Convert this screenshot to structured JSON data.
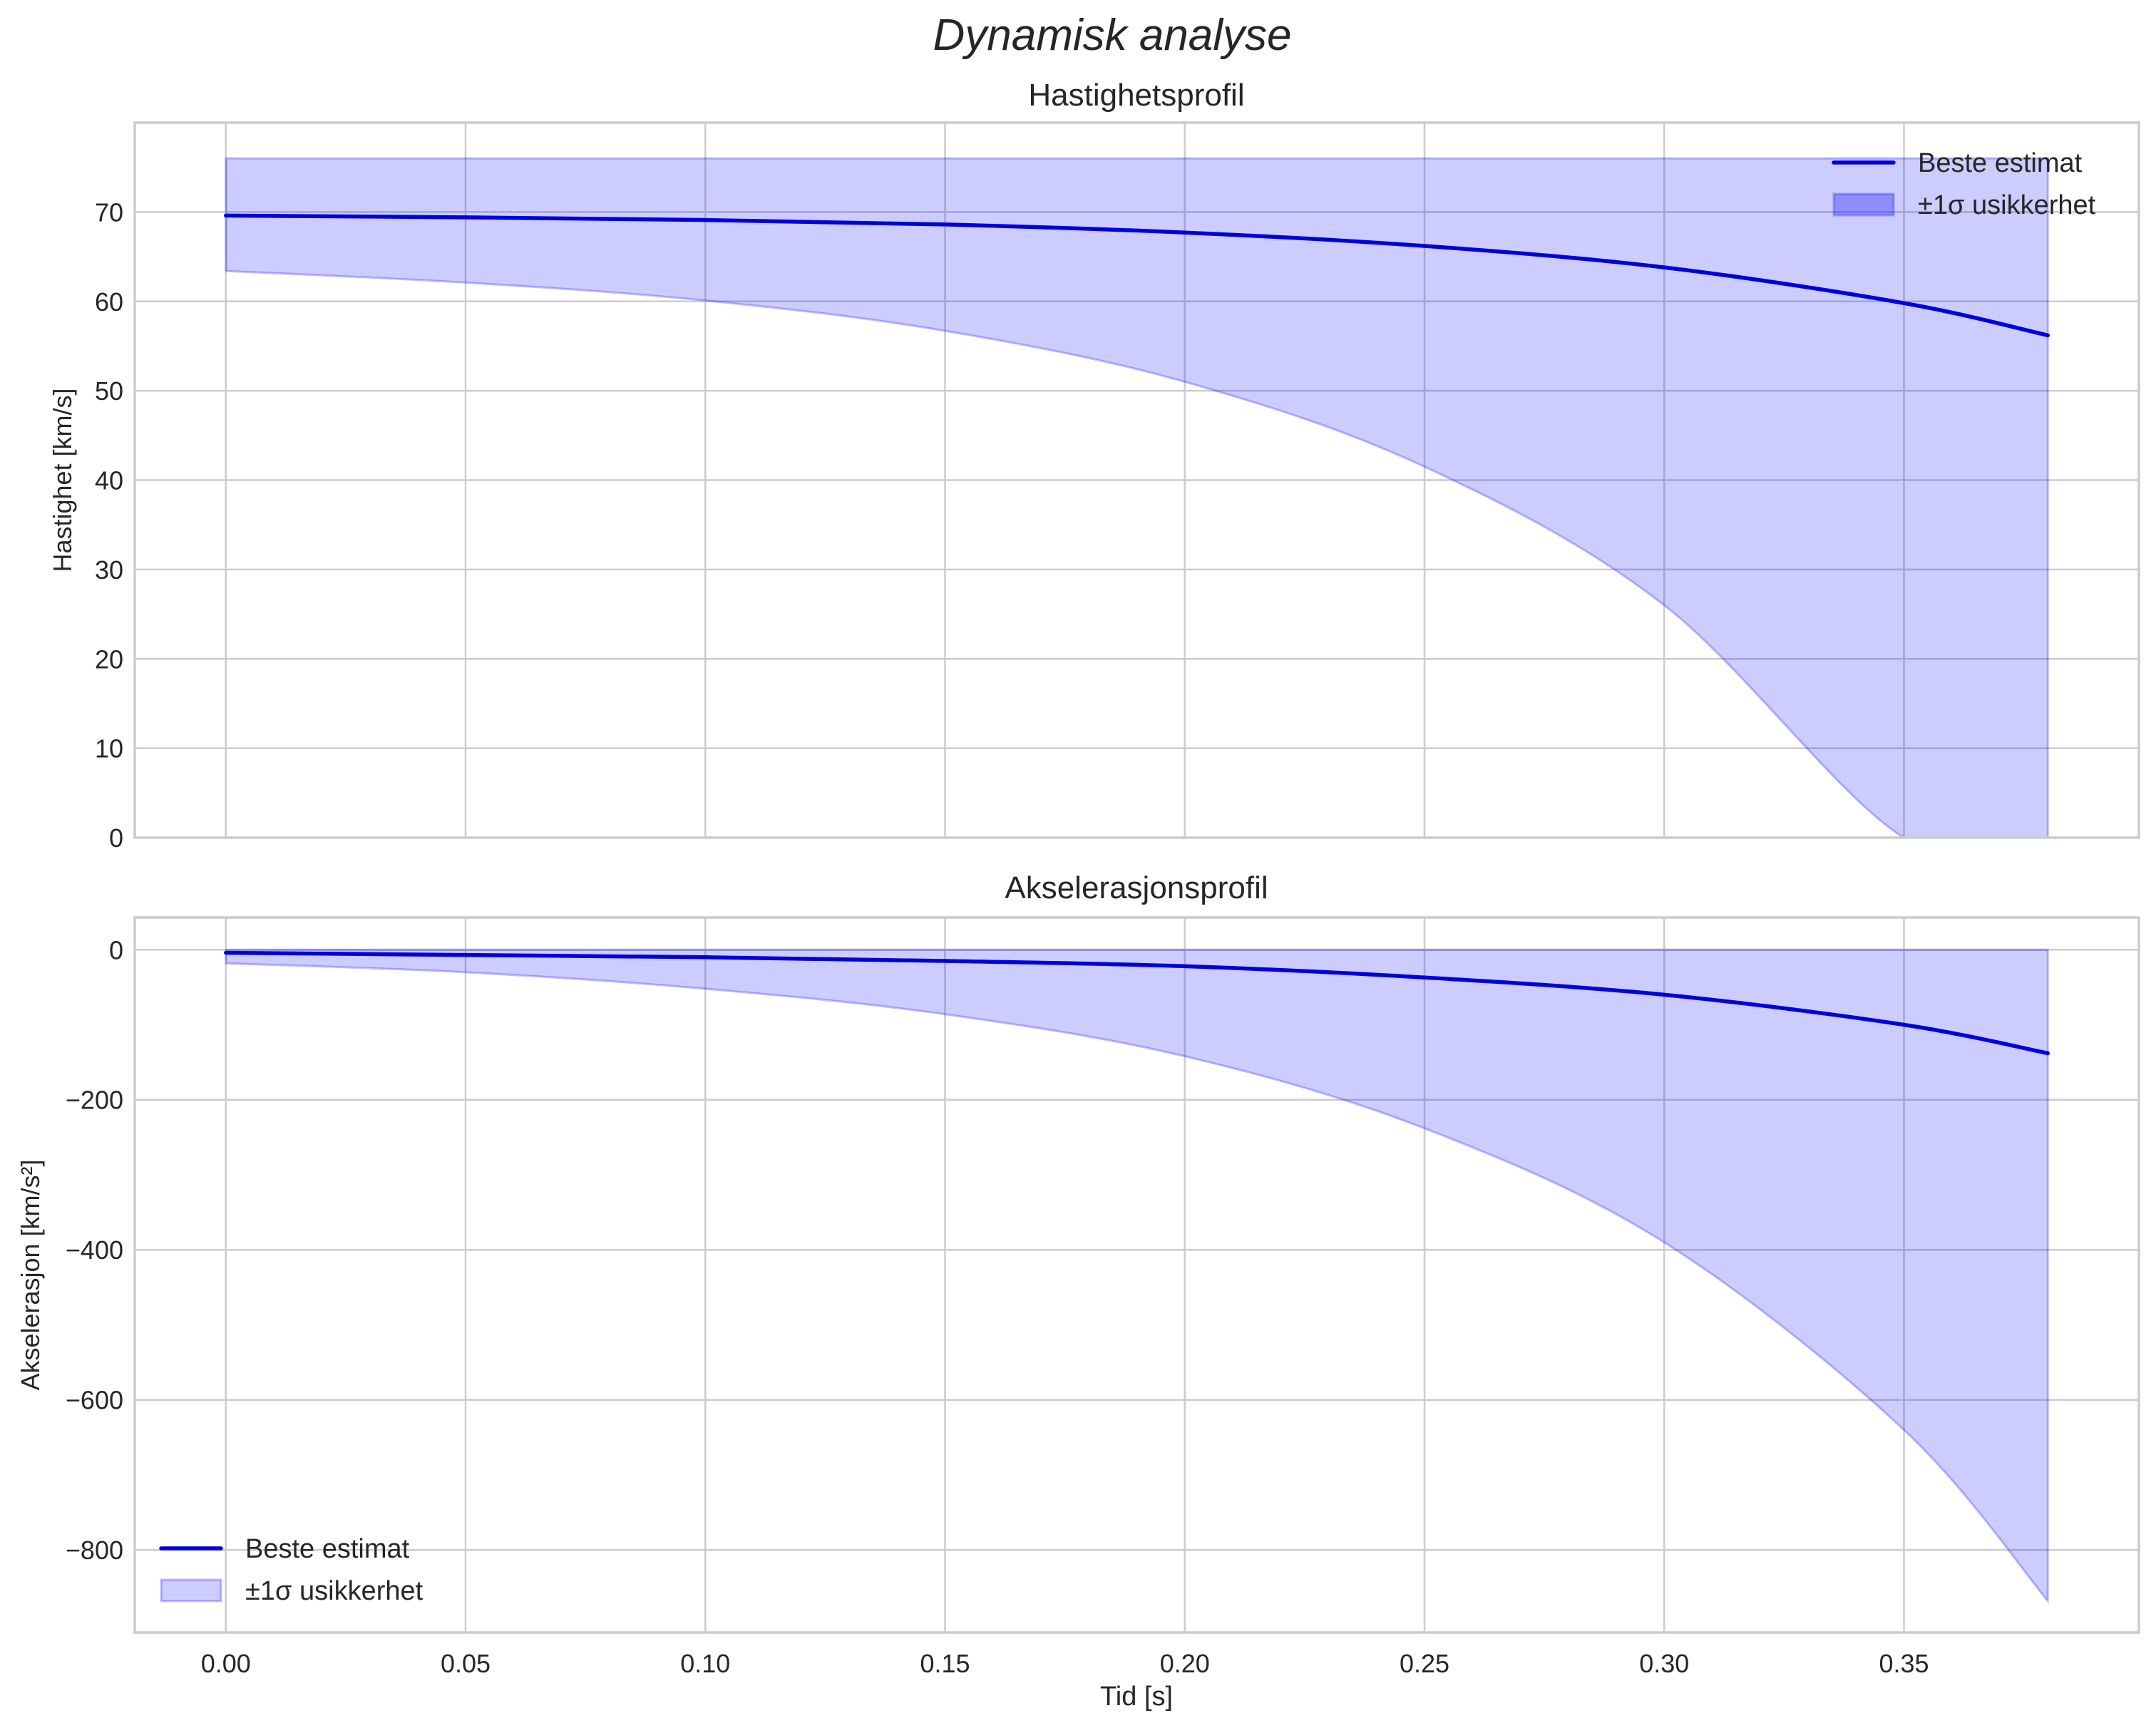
{
  "figure": {
    "suptitle": "Dynamisk analyse",
    "xlabel": "Tid [s]",
    "colors": {
      "line": "#0000dd",
      "band": "#0000ff",
      "band_alpha": 0.2,
      "grid": "#cccccc",
      "text": "#262626"
    }
  },
  "chart_data": [
    {
      "type": "line",
      "title": "Hastighetsprofil",
      "xlabel": "",
      "ylabel": "Hastighet [km/s]",
      "xlim": [
        -0.019,
        0.399
      ],
      "ylim": [
        0,
        80
      ],
      "xticks": [
        0.0,
        0.05,
        0.1,
        0.15,
        0.2,
        0.25,
        0.3,
        0.35
      ],
      "xtick_labels": [
        "0.00",
        "0.05",
        "0.10",
        "0.15",
        "0.20",
        "0.25",
        "0.30",
        "0.35"
      ],
      "yticks": [
        0,
        10,
        20,
        30,
        40,
        50,
        60,
        70
      ],
      "ytick_labels": [
        "0",
        "10",
        "20",
        "30",
        "40",
        "50",
        "60",
        "70"
      ],
      "grid": true,
      "legend": {
        "position": "upper right",
        "entries": [
          "Beste estimat",
          "±1σ usikkerhet"
        ]
      },
      "x": [
        0.0,
        0.05,
        0.1,
        0.15,
        0.2,
        0.25,
        0.3,
        0.35,
        0.38
      ],
      "series": [
        {
          "name": "Beste estimat",
          "kind": "line",
          "values": [
            69.6,
            69.4,
            69.1,
            68.6,
            67.7,
            66.2,
            63.8,
            59.8,
            56.2
          ]
        },
        {
          "name": "±1σ usikkerhet",
          "kind": "band",
          "upper": [
            76.0,
            76.0,
            76.0,
            76.0,
            76.0,
            76.0,
            76.0,
            76.0,
            76.0
          ],
          "lower": [
            63.4,
            62.1,
            60.1,
            56.7,
            51.0,
            41.5,
            26.0,
            0.0,
            0.0
          ]
        }
      ]
    },
    {
      "type": "line",
      "title": "Akselerasjonsprofil",
      "xlabel": "Tid [s]",
      "ylabel": "Akselerasjon [km/s²]",
      "xlim": [
        -0.019,
        0.399
      ],
      "ylim": [
        -910,
        43
      ],
      "xticks": [
        0.0,
        0.05,
        0.1,
        0.15,
        0.2,
        0.25,
        0.3,
        0.35
      ],
      "xtick_labels": [
        "0.00",
        "0.05",
        "0.10",
        "0.15",
        "0.20",
        "0.25",
        "0.30",
        "0.35"
      ],
      "yticks": [
        0,
        -200,
        -400,
        -600,
        -800
      ],
      "ytick_labels": [
        "0",
        "−200",
        "−400",
        "−600",
        "−800"
      ],
      "grid": true,
      "legend": {
        "position": "lower left",
        "entries": [
          "Beste estimat",
          "±1σ usikkerhet"
        ]
      },
      "x": [
        0.0,
        0.05,
        0.1,
        0.15,
        0.2,
        0.25,
        0.3,
        0.35,
        0.38
      ],
      "series": [
        {
          "name": "Beste estimat",
          "kind": "line",
          "values": [
            -4,
            -7,
            -10,
            -15,
            -22,
            -37,
            -60,
            -100,
            -138
          ]
        },
        {
          "name": "±1σ usikkerhet",
          "kind": "band",
          "upper": [
            0,
            0,
            0,
            0,
            0,
            0,
            0,
            0,
            0
          ],
          "lower": [
            -18,
            -30,
            -52,
            -86,
            -142,
            -238,
            -390,
            -640,
            -868
          ]
        }
      ]
    }
  ]
}
